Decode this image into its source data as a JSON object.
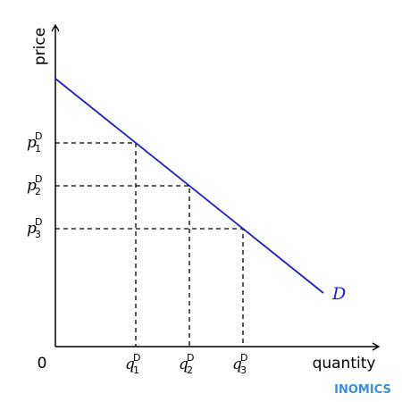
{
  "axes": {
    "y_label": "price",
    "x_label": "quantity",
    "origin": "0"
  },
  "price_labels": [
    {
      "base": "p",
      "sub": "1",
      "sup": "D"
    },
    {
      "base": "p",
      "sub": "2",
      "sup": "D"
    },
    {
      "base": "p",
      "sub": "3",
      "sup": "D"
    }
  ],
  "quantity_labels": [
    {
      "base": "q",
      "sub": "1",
      "sup": "D"
    },
    {
      "base": "q",
      "sub": "2",
      "sup": "D"
    },
    {
      "base": "q",
      "sub": "3",
      "sup": "D"
    }
  ],
  "curve_label": "D",
  "watermark": "INOMICS"
}
